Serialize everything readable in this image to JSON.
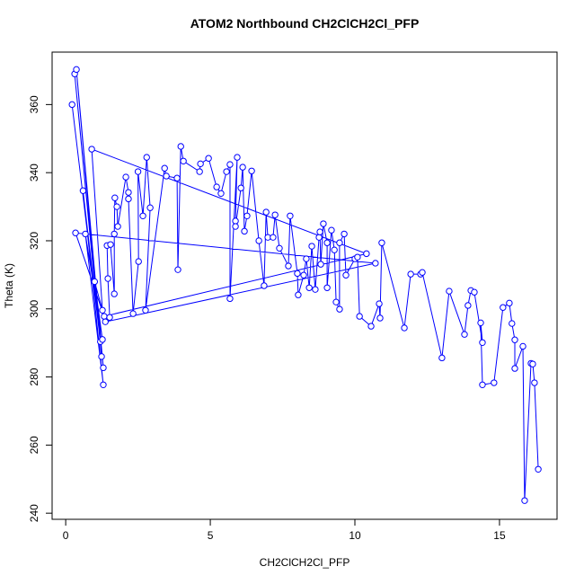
{
  "chart_data": {
    "type": "line",
    "title": "ATOM2 Northbound CH2ClCH2Cl_PFP",
    "x_label": "CH2ClCH2Cl_PFP",
    "y_label": "Theta (K)",
    "x": [
      0.22,
      1.2,
      0.31,
      1.24,
      0.37,
      1.3,
      0.6,
      1.3,
      0.68,
      1.27,
      1.0,
      1.27,
      0.9,
      10.4,
      1.33,
      0.34,
      10.71,
      1.37,
      1.52,
      1.46,
      1.43,
      1.55,
      1.68,
      1.68,
      1.7,
      1.77,
      1.8,
      2.08,
      2.17,
      2.17,
      2.33,
      2.52,
      2.5,
      2.67,
      2.8,
      2.92,
      2.76,
      3.42,
      3.48,
      3.85,
      3.88,
      3.98,
      4.07,
      4.63,
      4.66,
      4.94,
      5.22,
      5.37,
      5.56,
      5.68,
      5.68,
      5.93,
      5.87,
      5.87,
      6.06,
      6.12,
      6.18,
      6.27,
      6.43,
      6.68,
      6.86,
      6.93,
      6.99,
      7.17,
      7.24,
      7.39,
      7.7,
      7.76,
      8.01,
      8.04,
      8.23,
      8.32,
      8.42,
      8.51,
      8.63,
      8.76,
      8.79,
      8.82,
      8.91,
      9.04,
      9.04,
      9.19,
      9.29,
      9.35,
      9.47,
      9.47,
      9.63,
      9.69,
      10.0,
      10.09,
      10.16,
      10.56,
      10.84,
      10.87,
      10.93,
      11.71,
      11.93,
      12.27,
      12.33,
      13.01,
      13.26,
      13.79,
      13.91,
      14.01,
      14.13,
      14.41,
      14.35,
      14.41,
      14.81,
      15.12,
      15.34,
      15.43,
      15.53,
      15.53,
      15.81,
      15.87,
      16.09,
      16.15,
      16.21,
      16.34
    ],
    "values": [
      360.0,
      290.4,
      369.0,
      286.0,
      370.3,
      282.7,
      334.7,
      277.7,
      322.0,
      291.0,
      308.0,
      299.6,
      346.9,
      316.2,
      297.8,
      322.3,
      313.4,
      296.2,
      297.5,
      308.9,
      318.6,
      318.9,
      304.4,
      322.0,
      332.6,
      330.0,
      324.2,
      338.7,
      334.2,
      332.3,
      298.6,
      313.9,
      340.3,
      327.3,
      344.5,
      329.7,
      299.6,
      341.3,
      339.0,
      338.4,
      311.5,
      347.7,
      343.4,
      340.3,
      342.6,
      344.2,
      335.8,
      333.9,
      340.3,
      342.4,
      303.0,
      344.5,
      325.8,
      324.2,
      335.5,
      341.6,
      322.8,
      327.3,
      340.5,
      320.0,
      306.8,
      328.4,
      321.0,
      321.0,
      327.6,
      317.8,
      312.6,
      327.3,
      310.4,
      304.1,
      309.9,
      314.7,
      306.2,
      318.4,
      305.7,
      321.0,
      322.6,
      313.1,
      325.0,
      319.4,
      306.2,
      323.1,
      317.3,
      302.0,
      299.9,
      319.4,
      322.0,
      309.9,
      314.7,
      315.2,
      297.8,
      294.9,
      301.5,
      297.3,
      319.4,
      294.4,
      310.2,
      310.2,
      310.7,
      285.6,
      305.2,
      292.5,
      301.0,
      305.4,
      304.9,
      290.1,
      295.9,
      277.7,
      278.3,
      300.4,
      301.7,
      295.7,
      290.9,
      282.5,
      289.0,
      243.7,
      284.0,
      283.8,
      278.3,
      252.9
    ],
    "color": "#0000ff",
    "xlim": [
      -0.47,
      16.99
    ],
    "xticks": [
      0,
      5,
      10,
      15
    ],
    "ylim": [
      238.2,
      375.4
    ],
    "yticks": [
      240,
      260,
      280,
      300,
      320,
      340,
      360
    ]
  }
}
